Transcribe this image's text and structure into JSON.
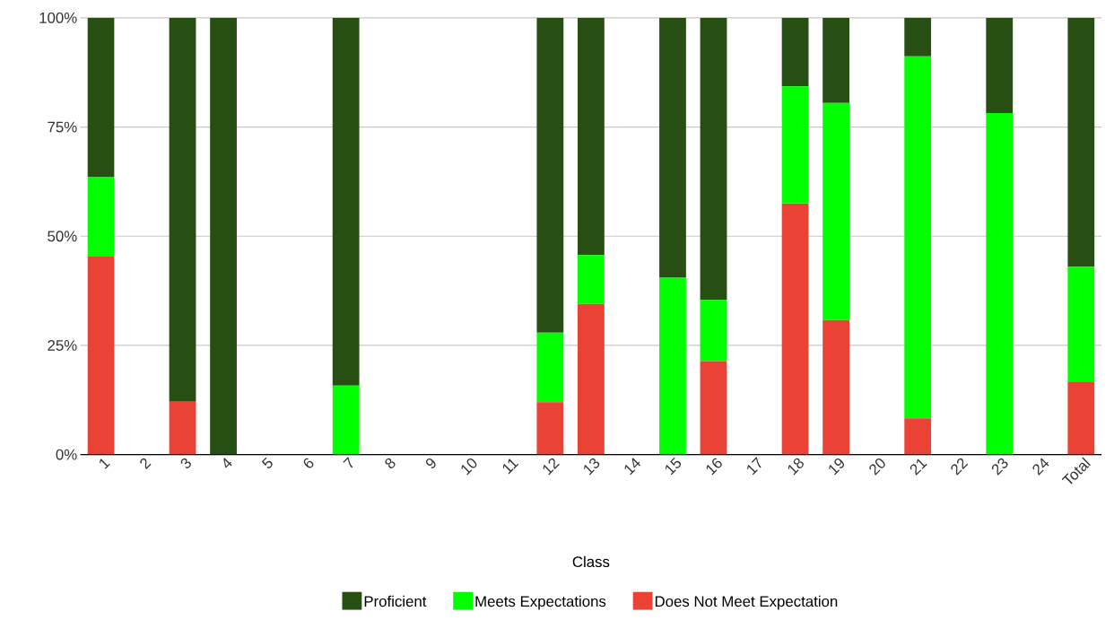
{
  "chart_data": {
    "type": "bar",
    "stacked": true,
    "xlabel": "Class",
    "categories": [
      "1",
      "2",
      "3",
      "4",
      "5",
      "6",
      "7",
      "8",
      "9",
      "10",
      "11",
      "12",
      "13",
      "14",
      "15",
      "16",
      "17",
      "18",
      "19",
      "20",
      "21",
      "22",
      "23",
      "24",
      "Total"
    ],
    "series": [
      {
        "name": "Does Not Meet Expectation",
        "color": "#ea4335",
        "values": [
          45.3,
          null,
          12.1,
          null,
          null,
          null,
          null,
          null,
          null,
          null,
          null,
          12.0,
          34.5,
          null,
          null,
          21.4,
          null,
          57.5,
          30.8,
          null,
          8.3,
          null,
          null,
          null,
          16.7
        ]
      },
      {
        "name": "Meets Expectations",
        "color": "#00ff00",
        "values": [
          18.3,
          null,
          null,
          null,
          null,
          null,
          15.8,
          null,
          null,
          null,
          null,
          15.9,
          11.2,
          null,
          40.6,
          14.0,
          null,
          26.8,
          49.7,
          null,
          82.9,
          null,
          78.2,
          null,
          26.3
        ]
      },
      {
        "name": "Proficient",
        "color": "#274e13",
        "values": [
          36.4,
          null,
          87.9,
          100,
          null,
          null,
          84.2,
          null,
          null,
          null,
          null,
          72.1,
          54.3,
          null,
          59.4,
          64.6,
          null,
          15.7,
          19.5,
          null,
          8.8,
          null,
          21.8,
          null,
          57.0
        ]
      }
    ],
    "ylim": [
      0,
      100
    ],
    "yticks": [
      {
        "value": 0,
        "label": "0%"
      },
      {
        "value": 25,
        "label": "25%"
      },
      {
        "value": 50,
        "label": "50%"
      },
      {
        "value": 75,
        "label": "75%"
      },
      {
        "value": 100,
        "label": "100%"
      }
    ],
    "grid": "y",
    "legend": "bottom"
  }
}
